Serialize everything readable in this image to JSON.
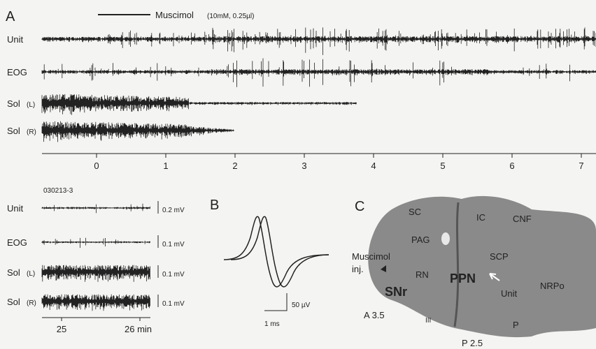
{
  "panel_a": {
    "label": "A",
    "drug": "Muscimol",
    "drug_detail": "(10mM, 0.25µl)",
    "traces": [
      {
        "name": "Unit",
        "side": ""
      },
      {
        "name": "EOG",
        "side": ""
      },
      {
        "name": "Sol",
        "side": "(L)"
      },
      {
        "name": "Sol",
        "side": "(R)"
      }
    ],
    "xticks": [
      "0",
      "1",
      "2",
      "3",
      "4",
      "5",
      "6",
      "7"
    ]
  },
  "panel_a_detail": {
    "id": "030213-3",
    "traces": [
      {
        "name": "Unit",
        "side": "",
        "scale": "0.2 mV"
      },
      {
        "name": "EOG",
        "side": "",
        "scale": "0.1 mV"
      },
      {
        "name": "Sol",
        "side": "(L)",
        "scale": "0.1 mV"
      },
      {
        "name": "Sol",
        "side": "(R)",
        "scale": "0.1 mV"
      }
    ],
    "xticks": [
      "25",
      "26 min"
    ]
  },
  "panel_b": {
    "label": "B",
    "scale_v": "50 µV",
    "scale_t": "1 ms"
  },
  "panel_c": {
    "label": "C",
    "regions": [
      "SC",
      "IC",
      "CNF",
      "PAG",
      "SCP",
      "Muscimol",
      "inj.",
      "RN",
      "PPN",
      "SNr",
      "Unit",
      "NRPo",
      "A 3.5",
      "III",
      "P",
      "P 2.5"
    ]
  }
}
